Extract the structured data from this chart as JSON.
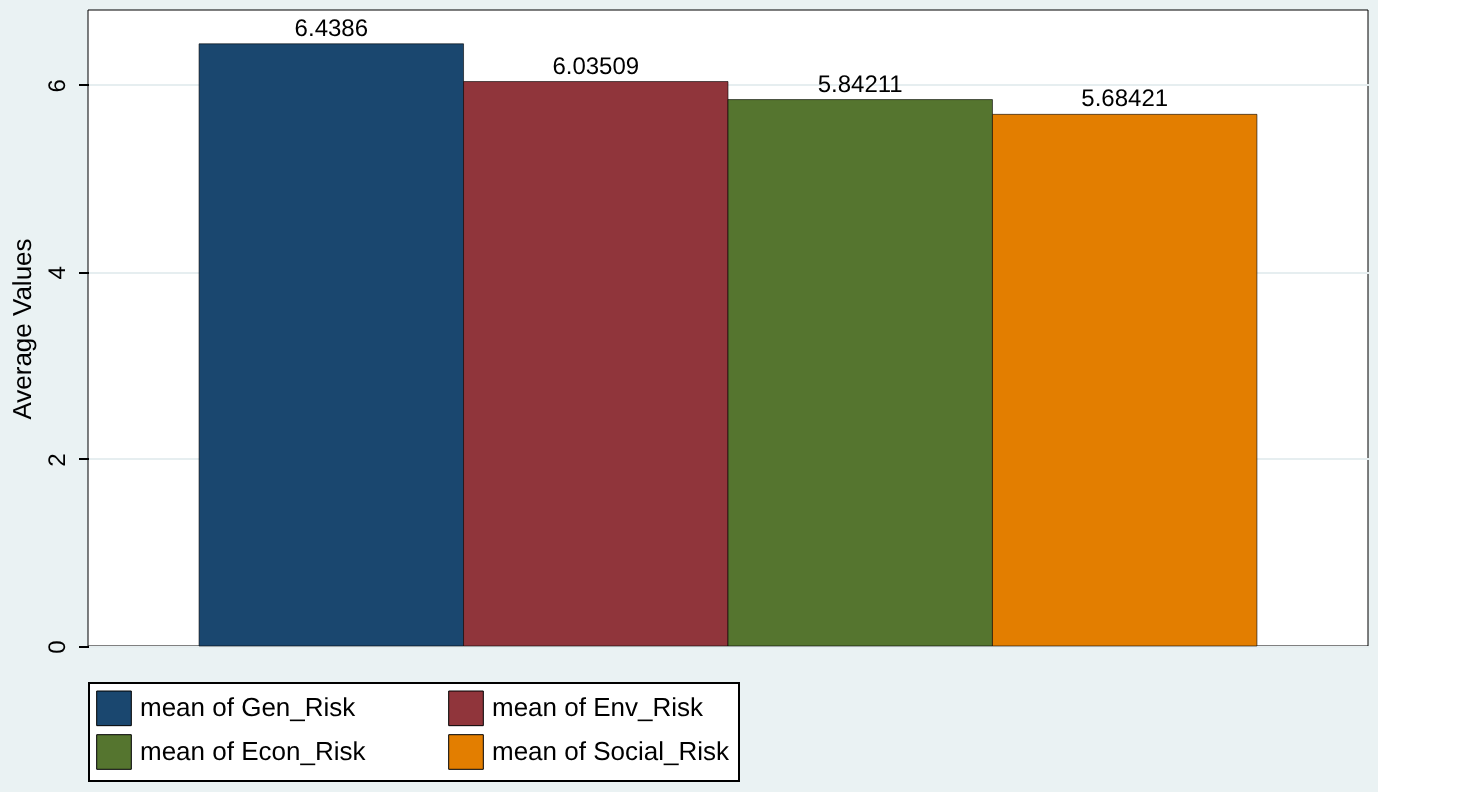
{
  "chart_data": {
    "type": "bar",
    "ylabel": "Average Values",
    "categories": [
      null
    ],
    "series": [
      {
        "name": "mean of Gen_Risk",
        "color": "#1a476f",
        "values": [
          6.4386
        ]
      },
      {
        "name": "mean of Env_Risk",
        "color": "#90353b",
        "values": [
          6.03509
        ]
      },
      {
        "name": "mean of Econ_Risk",
        "color": "#55752f",
        "values": [
          5.84211
        ]
      },
      {
        "name": "mean of Social_Risk",
        "color": "#e37e00",
        "values": [
          5.68421
        ]
      }
    ],
    "ylim": [
      0,
      6.8
    ],
    "yticks": [
      0,
      2,
      4,
      6
    ],
    "grid": "y",
    "legend": "bottom",
    "data_labels": true
  }
}
